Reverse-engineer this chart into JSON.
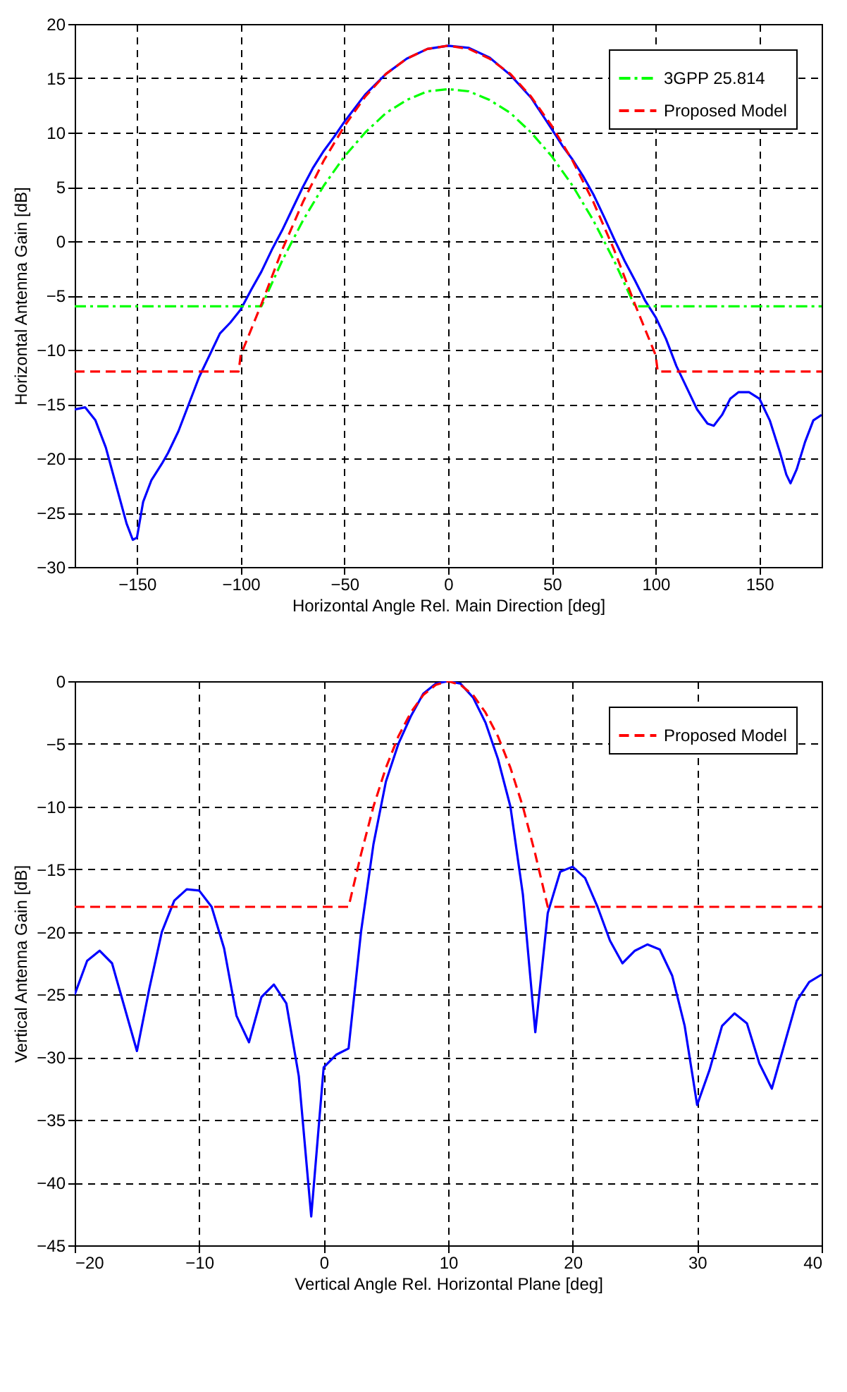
{
  "chart_data": [
    {
      "type": "line",
      "xlabel": "Horizontal Angle Rel. Main Direction [deg]",
      "ylabel": "Horizontal Antenna Gain [dB]",
      "xlim": [
        -180,
        180
      ],
      "ylim": [
        -30,
        20
      ],
      "xticks": [
        -150,
        -100,
        -50,
        0,
        50,
        100,
        150
      ],
      "yticks": [
        -30,
        -25,
        -20,
        -15,
        -10,
        -5,
        0,
        5,
        10,
        15,
        20
      ],
      "grid": true,
      "legend": "top right",
      "series": [
        {
          "color": "#0000ff",
          "line_style": "solid",
          "x": [
            -180,
            -175,
            -170,
            -165,
            -160,
            -155,
            -152,
            -150,
            -147,
            -143,
            -138,
            -135,
            -130,
            -125,
            -120,
            -115,
            -110,
            -105,
            -100,
            -95,
            -90,
            -85,
            -80,
            -75,
            -70,
            -65,
            -60,
            -55,
            -50,
            -40,
            -30,
            -20,
            -10,
            0,
            10,
            20,
            30,
            40,
            50,
            55,
            60,
            65,
            70,
            75,
            80,
            85,
            90,
            95,
            100,
            105,
            110,
            115,
            120,
            125,
            128,
            132,
            136,
            140,
            145,
            150,
            155,
            160,
            163,
            165,
            168,
            172,
            176,
            180
          ],
          "values": [
            -15.5,
            -15.3,
            -16.5,
            -19,
            -22.5,
            -26,
            -27.5,
            -27.3,
            -24,
            -22,
            -20.5,
            -19.5,
            -17.5,
            -15,
            -12.5,
            -10.5,
            -8.5,
            -7.5,
            -6.3,
            -4.5,
            -2.8,
            -0.8,
            1,
            3,
            5,
            6.8,
            8.3,
            9.6,
            11,
            13.5,
            15.4,
            16.8,
            17.7,
            18,
            17.8,
            16.9,
            15.3,
            13.2,
            10.3,
            8.8,
            7.5,
            6,
            4.3,
            2.3,
            0.2,
            -1.8,
            -3.6,
            -5.5,
            -7,
            -9,
            -11.5,
            -13.5,
            -15.5,
            -16.8,
            -17,
            -16,
            -14.5,
            -13.9,
            -13.9,
            -14.5,
            -16.5,
            -19.5,
            -21.5,
            -22.3,
            -21,
            -18.5,
            -16.5,
            -16
          ]
        },
        {
          "name": "3GPP 25.814",
          "color": "#00ff00",
          "line_style": "dashdot",
          "x": [
            -180,
            -90,
            -80,
            -70,
            -60,
            -50,
            -40,
            -30,
            -20,
            -10,
            0,
            10,
            20,
            30,
            40,
            50,
            60,
            70,
            80,
            90,
            180
          ],
          "values": [
            -6,
            -6,
            -1.8,
            1.9,
            5.1,
            7.8,
            10,
            11.8,
            13,
            13.8,
            14,
            13.8,
            13,
            11.8,
            10,
            7.8,
            5.1,
            1.9,
            -1.8,
            -6,
            -6
          ]
        },
        {
          "name": "Proposed Model",
          "color": "#ff0000",
          "line_style": "dashed",
          "x": [
            -180,
            -101,
            -100,
            -90,
            -80,
            -70,
            -60,
            -50,
            -40,
            -30,
            -20,
            -10,
            0,
            10,
            20,
            30,
            40,
            50,
            60,
            70,
            80,
            90,
            100,
            101,
            180
          ],
          "values": [
            -12,
            -12,
            -10.5,
            -5.8,
            -0.8,
            3.6,
            7.4,
            10.6,
            13.3,
            15.4,
            16.8,
            17.7,
            18,
            17.7,
            16.8,
            15.4,
            13.3,
            10.6,
            7.4,
            3.6,
            -0.8,
            -5.8,
            -10.5,
            -12,
            -12
          ]
        }
      ]
    },
    {
      "type": "line",
      "xlabel": "Vertical Angle Rel. Horizontal Plane [deg]",
      "ylabel": "Vertical Antenna Gain [dB]",
      "xlim": [
        -20,
        40
      ],
      "ylim": [
        -45,
        0
      ],
      "xticks": [
        -20,
        -10,
        0,
        10,
        20,
        30,
        40
      ],
      "yticks": [
        -45,
        -40,
        -35,
        -30,
        -25,
        -20,
        -15,
        -10,
        -5,
        0
      ],
      "grid": true,
      "legend": "top right",
      "series": [
        {
          "color": "#0000ff",
          "line_style": "solid",
          "x": [
            -20,
            -19,
            -18,
            -17,
            -16,
            -15,
            -14,
            -13,
            -12,
            -11,
            -10,
            -9,
            -8,
            -7,
            -6,
            -5,
            -4,
            -3,
            -2,
            -1,
            0,
            1,
            2,
            3,
            4,
            5,
            6,
            7,
            8,
            9,
            10,
            11,
            12,
            13,
            14,
            15,
            16,
            17,
            18,
            19,
            20,
            21,
            22,
            23,
            24,
            25,
            26,
            27,
            28,
            29,
            30,
            31,
            32,
            33,
            34,
            35,
            36,
            37,
            38,
            39,
            40
          ],
          "values": [
            -25,
            -22.3,
            -21.5,
            -22.5,
            -26,
            -29.5,
            -24.5,
            -20,
            -17.5,
            -16.6,
            -16.7,
            -18,
            -21.3,
            -26.7,
            -28.8,
            -25.2,
            -24.2,
            -25.7,
            -31.5,
            -42.7,
            -30.8,
            -29.8,
            -29.3,
            -20,
            -13,
            -8,
            -5,
            -2.8,
            -1,
            -0.2,
            0,
            -0.2,
            -1.3,
            -3.3,
            -6.2,
            -10,
            -17,
            -28,
            -18.5,
            -15.2,
            -14.8,
            -15.7,
            -18,
            -20.7,
            -22.5,
            -21.5,
            -21,
            -21.4,
            -23.5,
            -27.5,
            -33.8,
            -31,
            -27.5,
            -26.5,
            -27.3,
            -30.5,
            -32.5,
            -29,
            -25.5,
            -24,
            -23.4
          ]
        },
        {
          "name": "Proposed Model",
          "color": "#ff0000",
          "line_style": "dashed",
          "x": [
            -20,
            2,
            3,
            4,
            5,
            6,
            7,
            8,
            9,
            10,
            11,
            12,
            13,
            14,
            15,
            16,
            17,
            18,
            40
          ],
          "values": [
            -18,
            -18,
            -13.8,
            -10,
            -6.9,
            -4.4,
            -2.5,
            -1.1,
            -0.3,
            0,
            -0.3,
            -1.1,
            -2.5,
            -4.4,
            -6.9,
            -10,
            -13.8,
            -18,
            -18
          ]
        }
      ]
    }
  ]
}
